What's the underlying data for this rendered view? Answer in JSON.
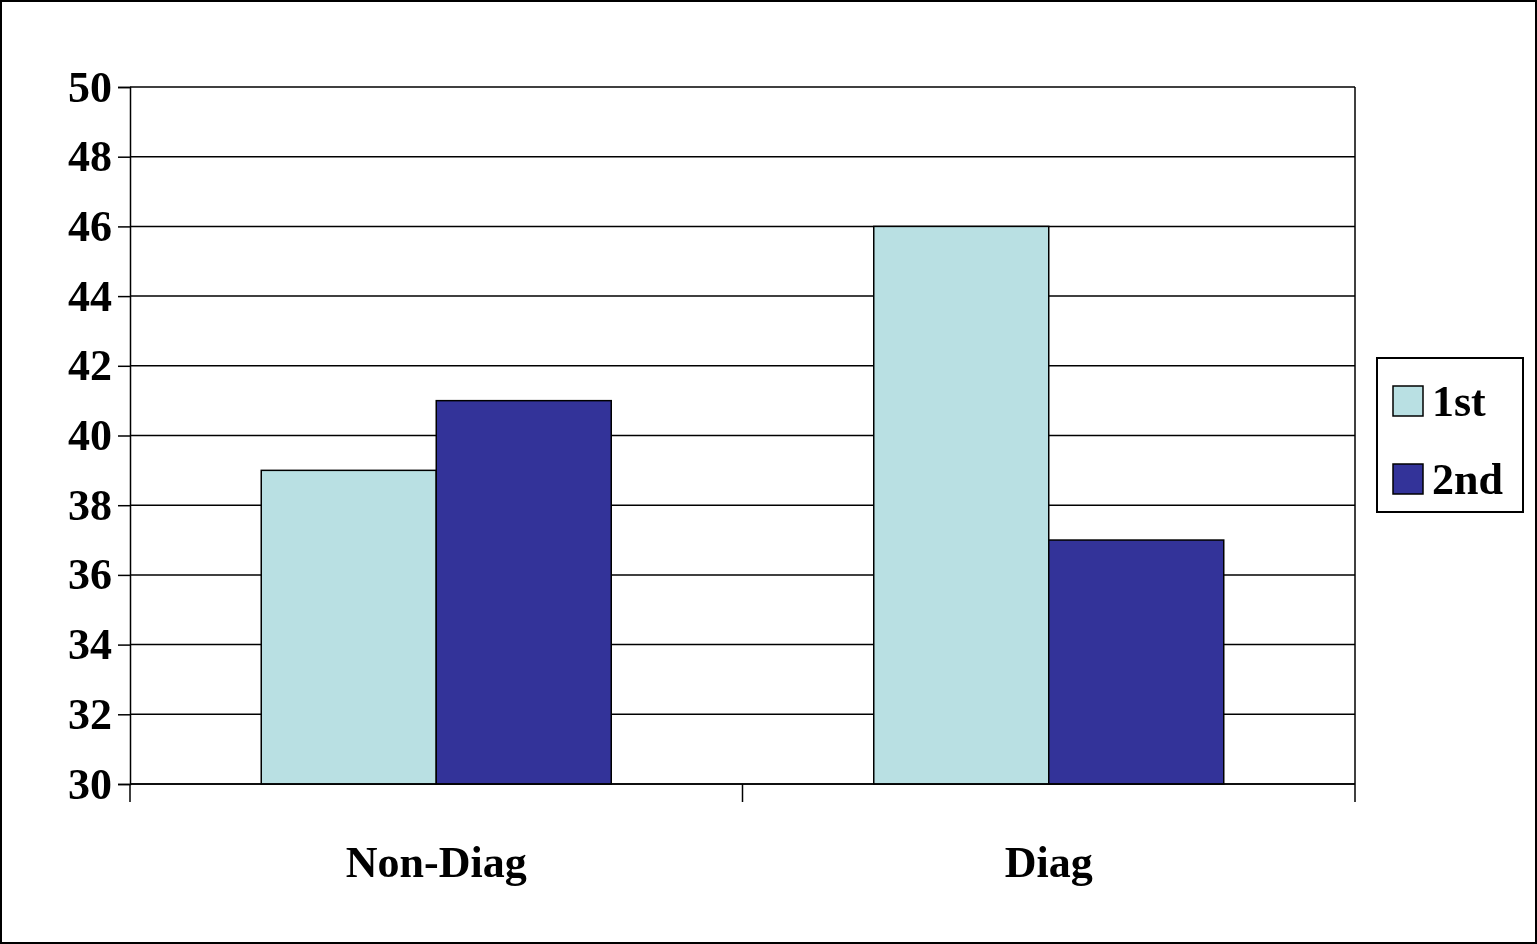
{
  "chart_data": {
    "type": "bar",
    "categories": [
      "Non-Diag",
      "Diag"
    ],
    "series": [
      {
        "name": "1st",
        "color": "#b9e0e3",
        "values": [
          39,
          46
        ]
      },
      {
        "name": "2nd",
        "color": "#333399",
        "values": [
          41,
          37
        ]
      }
    ],
    "ylim": [
      30,
      50
    ],
    "yticks": [
      30,
      32,
      34,
      36,
      38,
      40,
      42,
      44,
      46,
      48,
      50
    ],
    "grid": "y",
    "legend": "right"
  }
}
